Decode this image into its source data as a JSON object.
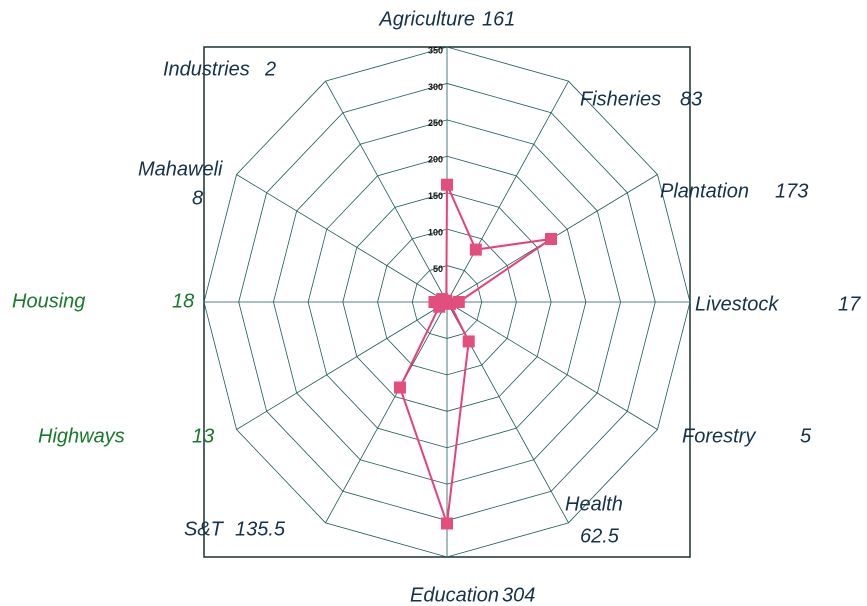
{
  "chart_data": {
    "type": "radar",
    "categories": [
      "Agriculture",
      "Fisheries",
      "Plantation",
      "Livestock",
      "Forestry",
      "Health",
      "Education",
      "S&T",
      "Highways",
      "Housing",
      "Mahaweli",
      "Industries"
    ],
    "values": [
      161,
      83,
      173,
      17,
      5,
      62.5,
      304,
      135.5,
      13,
      18,
      8,
      2
    ],
    "ylim": [
      0,
      350
    ],
    "yticks": [
      0,
      50,
      100,
      150,
      200,
      250,
      300,
      350
    ],
    "color": "#e8407a",
    "marker_color": "#e24f7c",
    "grid_color": "#1f5a5a",
    "label_colors": [
      "#16324a",
      "#16324a",
      "#16324a",
      "#16324a",
      "#16324a",
      "#16324a",
      "#16324a",
      "#16324a",
      "#177a2c",
      "#177a2c",
      "#16324a",
      "#16324a"
    ]
  }
}
